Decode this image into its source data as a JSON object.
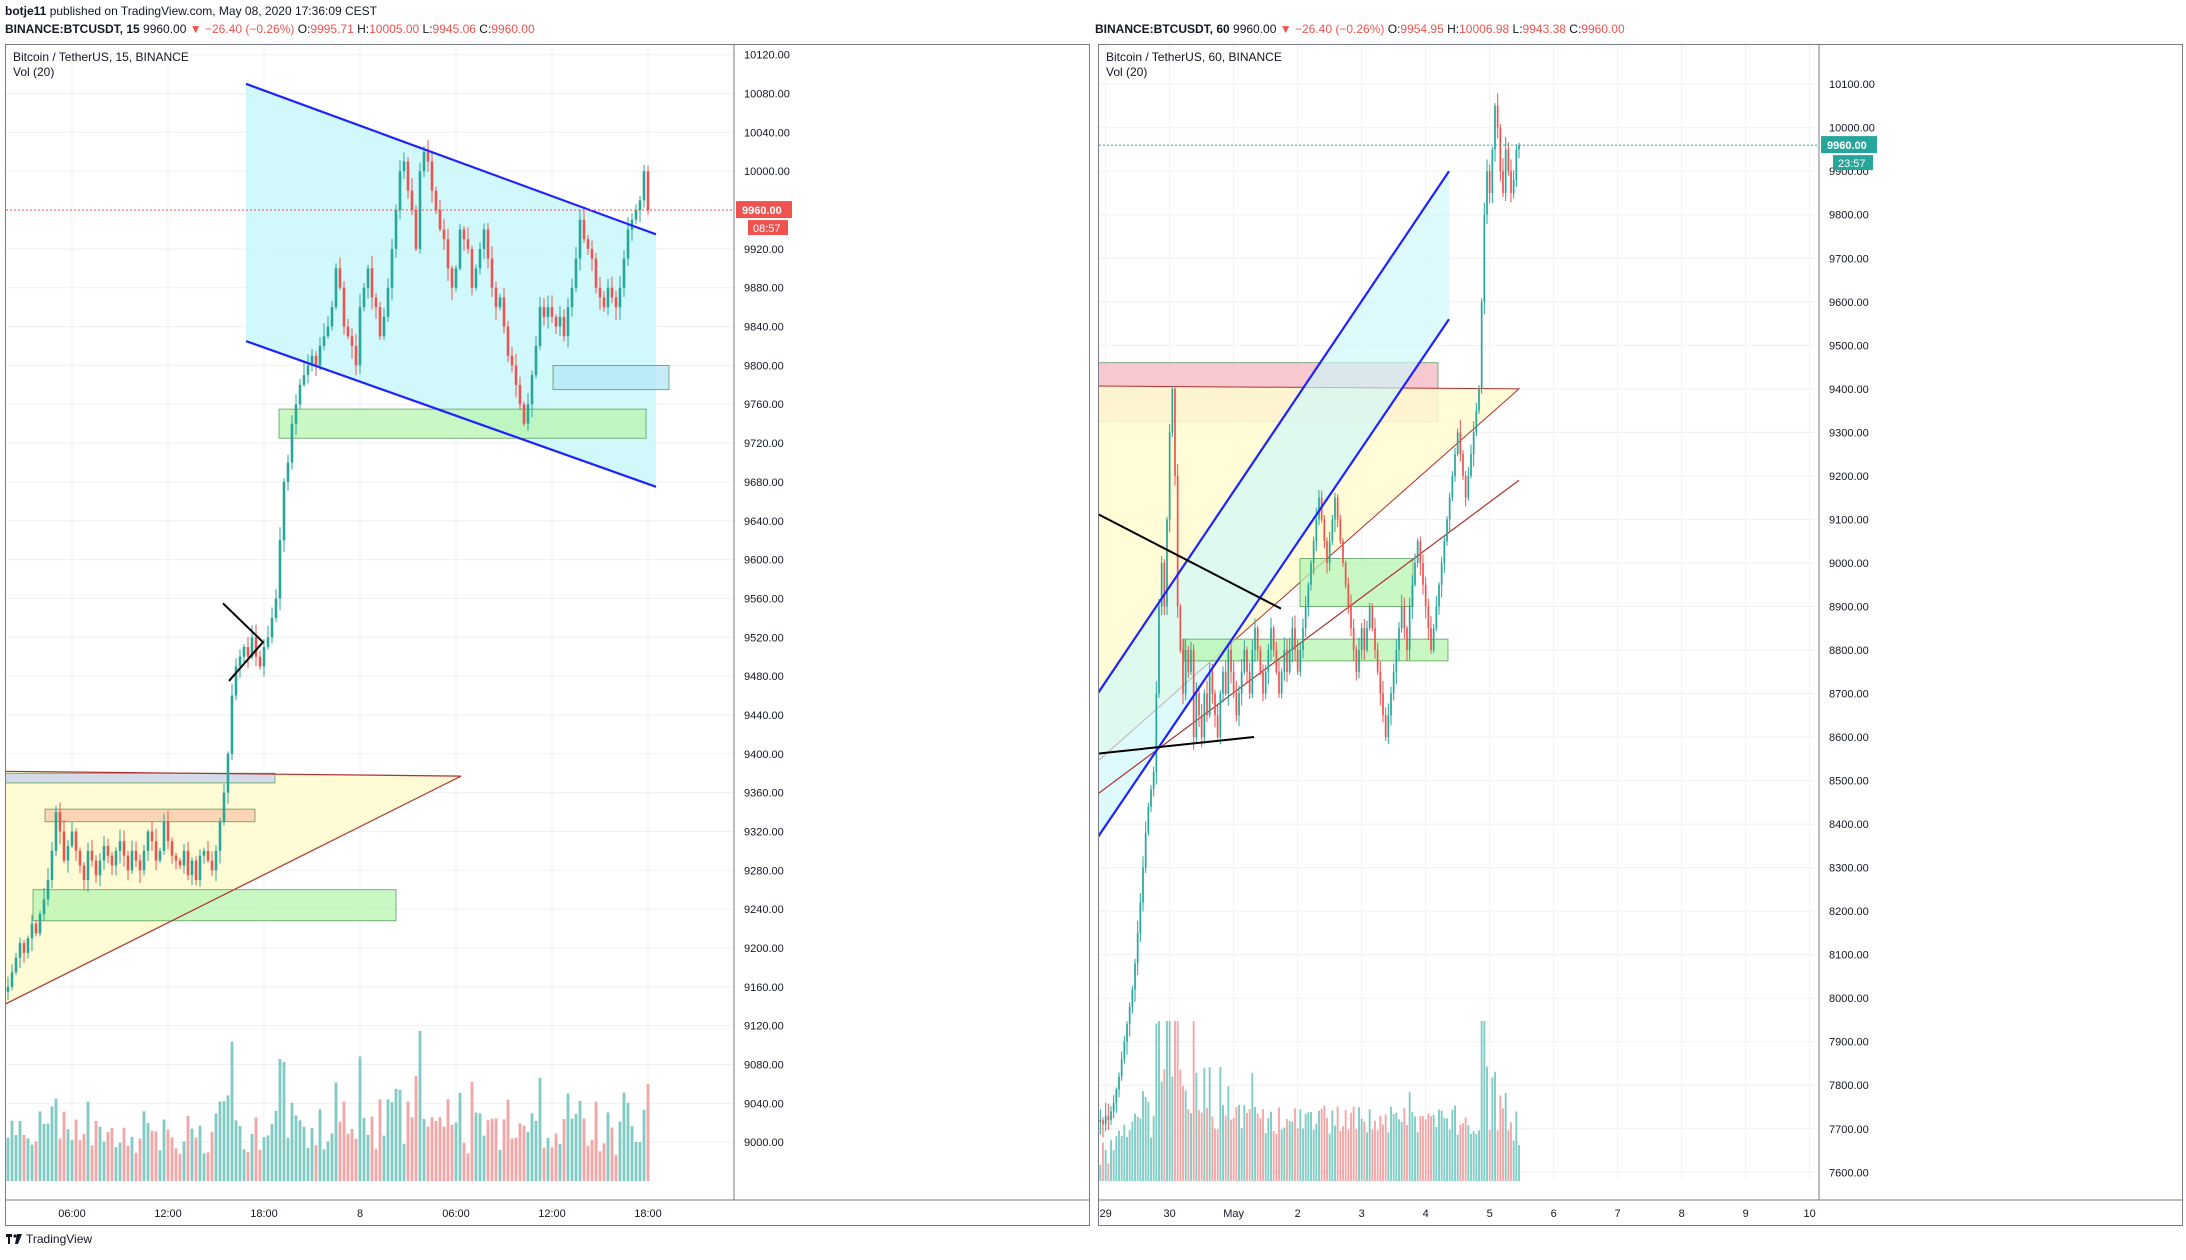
{
  "publish_line": {
    "user": "botje11",
    "rest": " published on TradingView.com, May 08, 2020 17:36:09 CEST"
  },
  "left_header": {
    "symbol": "BINANCE:BTCUSDT, 15",
    "price": "9960.00",
    "change": "▼ −26.40 (−0.26%)",
    "o_label": "O:",
    "o": "9995.71",
    "h_label": "H:",
    "h": "10005.00",
    "l_label": "L:",
    "l": "9945.06",
    "c_label": "C:",
    "c": "9960.00"
  },
  "right_header": {
    "symbol": "BINANCE:BTCUSDT, 60",
    "price": "9960.00",
    "change": "▼ −26.40 (−0.26%)",
    "o_label": "O:",
    "o": "9954.95",
    "h_label": "H:",
    "h": "10006.98",
    "l_label": "L:",
    "l": "9943.38",
    "c_label": "C:",
    "c": "9960.00"
  },
  "footer": {
    "brand": "TradingView"
  },
  "colors": {
    "up": "#26a69a",
    "down": "#ef5350",
    "vol_up": "#80cbc4",
    "vol_down": "#f4a6a6",
    "trend_blue": "#1e22ff"
  },
  "chart_data": [
    {
      "type": "candlestick",
      "title": "Bitcoin / TetherUS, 15, BINANCE",
      "indicator": "Vol (20)",
      "ylim": [
        8960,
        10130
      ],
      "yticks": [
        9000,
        9040,
        9080,
        9120,
        9160,
        9200,
        9240,
        9280,
        9320,
        9360,
        9400,
        9440,
        9480,
        9520,
        9560,
        9600,
        9640,
        9680,
        9720,
        9760,
        9800,
        9840,
        9880,
        9920,
        10000,
        10040,
        10080,
        10120
      ],
      "xticks": [
        {
          "i": 16,
          "label": "06:00"
        },
        {
          "i": 40,
          "label": "12:00"
        },
        {
          "i": 64,
          "label": "18:00"
        },
        {
          "i": 88,
          "label": "8"
        },
        {
          "i": 112,
          "label": "06:00"
        },
        {
          "i": 136,
          "label": "12:00"
        },
        {
          "i": 160,
          "label": "18:00"
        }
      ],
      "n_slots": 182,
      "last_price_label": "9960.00",
      "countdown_label": "08:57",
      "last_price": 9960,
      "close_series": [
        9160,
        9175,
        9190,
        9205,
        9195,
        9210,
        9225,
        9215,
        9235,
        9250,
        9270,
        9300,
        9340,
        9320,
        9290,
        9305,
        9320,
        9300,
        9285,
        9270,
        9300,
        9290,
        9275,
        9290,
        9305,
        9295,
        9285,
        9300,
        9310,
        9295,
        9280,
        9300,
        9290,
        9280,
        9300,
        9320,
        9310,
        9290,
        9300,
        9330,
        9310,
        9295,
        9290,
        9285,
        9300,
        9275,
        9290,
        9270,
        9295,
        9300,
        9290,
        9280,
        9300,
        9330,
        9360,
        9400,
        9460,
        9490,
        9500,
        9510,
        9500,
        9520,
        9500,
        9490,
        9510,
        9520,
        9540,
        9560,
        9620,
        9680,
        9700,
        9740,
        9760,
        9780,
        9790,
        9800,
        9810,
        9800,
        9820,
        9830,
        9840,
        9860,
        9900,
        9880,
        9840,
        9830,
        9820,
        9800,
        9860,
        9880,
        9900,
        9870,
        9860,
        9830,
        9850,
        9880,
        9920,
        9960,
        10000,
        10010,
        9980,
        9960,
        9920,
        10000,
        10020,
        10010,
        9980,
        9960,
        9940,
        9930,
        9900,
        9880,
        9900,
        9940,
        9930,
        9920,
        9880,
        9900,
        9920,
        9940,
        9910,
        9880,
        9860,
        9870,
        9840,
        9810,
        9800,
        9780,
        9760,
        9740,
        9760,
        9790,
        9820,
        9860,
        9850,
        9860,
        9850,
        9840,
        9850,
        9830,
        9860,
        9880,
        9910,
        9950,
        9930,
        9920,
        9910,
        9880,
        9870,
        9860,
        9880,
        9870,
        9860,
        9880,
        9910,
        9940,
        9950,
        9960,
        9970,
        10000,
        9960
      ],
      "annotations": {
        "channel_upper": [
          [
            245,
            10090
          ],
          [
            655,
            9935
          ]
        ],
        "channel_lower": [
          [
            245,
            9825
          ],
          [
            655,
            9675
          ]
        ],
        "triangle_top": [
          [
            0,
            9382
          ],
          [
            460,
            9377
          ]
        ],
        "triangle_bottom": [
          [
            0,
            9140
          ],
          [
            460,
            9377
          ]
        ],
        "pennant": [
          [
            222,
            9555
          ],
          [
            262,
            9515
          ],
          [
            228,
            9475
          ]
        ],
        "zones": [
          {
            "x0": 278,
            "x1": 645,
            "y0": 9725,
            "y1": 9755,
            "fill": "#b7f5b0"
          },
          {
            "x0": 552,
            "x1": 668,
            "y0": 9775,
            "y1": 9800,
            "fill": "#b3e5f8"
          },
          {
            "x0": 44,
            "x1": 254,
            "y0": 9330,
            "y1": 9343,
            "fill": "#f9c8a8"
          },
          {
            "x0": 32,
            "x1": 395,
            "y0": 9228,
            "y1": 9260,
            "fill": "#b7f5b0"
          },
          {
            "x0": 0,
            "x1": 274,
            "y0": 9370,
            "y1": 9380,
            "fill": "#c7d0f0"
          }
        ]
      }
    },
    {
      "type": "candlestick",
      "title": "Bitcoin / TetherUS, 60, BINANCE",
      "indicator": "Vol (20)",
      "ylim": [
        7580,
        10190
      ],
      "yticks": [
        7600,
        7700,
        7800,
        7900,
        8000,
        8100,
        8200,
        8300,
        8400,
        8500,
        8600,
        8700,
        8800,
        8900,
        9000,
        9100,
        9200,
        9300,
        9400,
        9500,
        9600,
        9700,
        9800,
        9900,
        10000,
        10100
      ],
      "xticks": [
        {
          "i": 2,
          "label": "29"
        },
        {
          "i": 26,
          "label": "30"
        },
        {
          "i": 50,
          "label": "May"
        },
        {
          "i": 74,
          "label": "2"
        },
        {
          "i": 98,
          "label": "3"
        },
        {
          "i": 122,
          "label": "4"
        },
        {
          "i": 146,
          "label": "5"
        },
        {
          "i": 170,
          "label": "6"
        },
        {
          "i": 194,
          "label": "7"
        },
        {
          "i": 218,
          "label": "8"
        },
        {
          "i": 242,
          "label": "9"
        },
        {
          "i": 266,
          "label": "10"
        }
      ],
      "n_slots": 270,
      "last_price_label": "9960.00",
      "countdown_label": "23:57",
      "last_price": 9960,
      "close_series": [
        7720,
        7710,
        7730,
        7720,
        7740,
        7760,
        7790,
        7820,
        7860,
        7900,
        7940,
        7980,
        8020,
        8080,
        8150,
        8220,
        8300,
        8380,
        8440,
        8480,
        8520,
        8700,
        8900,
        9000,
        8900,
        9100,
        9300,
        9400,
        9200,
        8900,
        8800,
        8700,
        8800,
        8750,
        8800,
        8600,
        8700,
        8650,
        8600,
        8700,
        8650,
        8750,
        8700,
        8650,
        8600,
        8700,
        8750,
        8700,
        8800,
        8750,
        8700,
        8650,
        8700,
        8750,
        8800,
        8750,
        8700,
        8800,
        8850,
        8800,
        8750,
        8700,
        8750,
        8800,
        8850,
        8800,
        8750,
        8700,
        8750,
        8800,
        8750,
        8800,
        8850,
        8800,
        8750,
        8800,
        8850,
        8900,
        8950,
        9000,
        9050,
        9100,
        9150,
        9100,
        9050,
        9000,
        9050,
        9100,
        9150,
        9100,
        9050,
        9000,
        8950,
        8900,
        8850,
        8800,
        8750,
        8800,
        8850,
        8800,
        8850,
        8900,
        8850,
        8800,
        8750,
        8700,
        8650,
        8600,
        8650,
        8700,
        8750,
        8800,
        8850,
        8900,
        8850,
        8800,
        8900,
        8950,
        9000,
        9050,
        9000,
        8950,
        8900,
        8850,
        8800,
        8850,
        8900,
        8950,
        9000,
        9050,
        9100,
        9150,
        9200,
        9250,
        9300,
        9250,
        9200,
        9150,
        9200,
        9250,
        9300,
        9350,
        9400,
        9600,
        9800,
        9900,
        9850,
        9950,
        10050,
        10000,
        9900,
        9850,
        9950,
        9900,
        9850,
        9880,
        9950,
        9960
      ],
      "annotations": {
        "rect_pink": {
          "x0": 847,
          "x1": 1437,
          "y0": 9325,
          "y1": 9460,
          "fill": "#f6b6c2"
        },
        "triangle": [
          [
            866,
            9410
          ],
          [
            1518,
            9400
          ],
          [
            861,
            8066
          ]
        ],
        "triangle_line": [
          [
            861,
            8066
          ],
          [
            1518,
            9190
          ]
        ],
        "descending_black": [
          [
            880,
            9370
          ],
          [
            1280,
            8895
          ]
        ],
        "ascending_black": [
          [
            842,
            8500
          ],
          [
            1253,
            8600
          ]
        ],
        "channel_upper": [
          [
            1085,
            8660
          ],
          [
            1448,
            9900
          ]
        ],
        "channel_lower": [
          [
            1085,
            8330
          ],
          [
            1448,
            9560
          ]
        ],
        "zones": [
          {
            "x0": 1299,
            "x1": 1412,
            "y0": 8900,
            "y1": 9010,
            "fill": "#b7f5b0"
          },
          {
            "x0": 1183,
            "x1": 1447,
            "y0": 8775,
            "y1": 8825,
            "fill": "#b7f5b0"
          }
        ]
      }
    }
  ]
}
